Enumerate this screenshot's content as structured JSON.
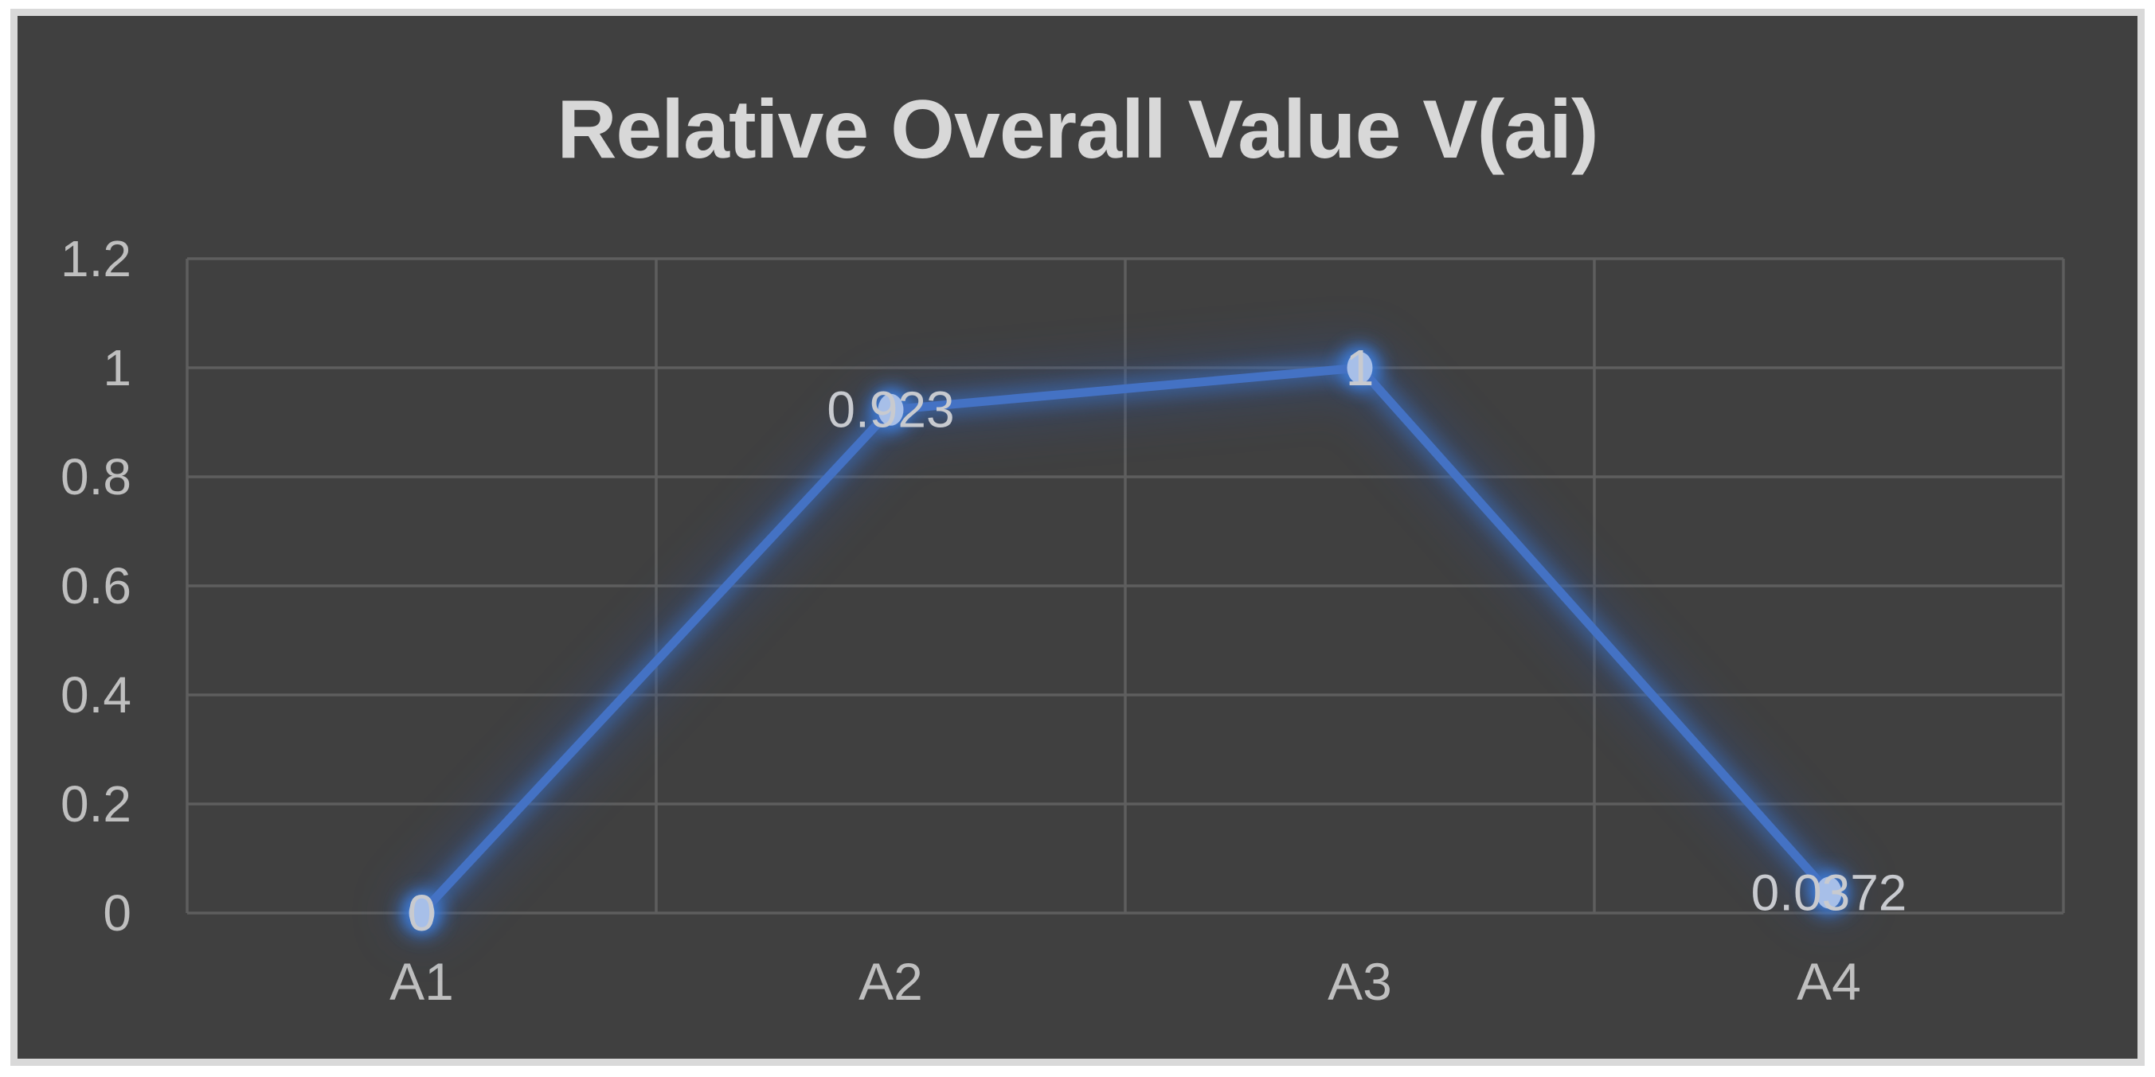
{
  "chart_data": {
    "type": "line",
    "title": "Relative Overall Value V(ai)",
    "categories": [
      "A1",
      "A2",
      "A3",
      "A4"
    ],
    "series": [
      {
        "name": "V(ai)",
        "values": [
          0,
          0.923,
          1,
          0.0372
        ],
        "data_labels": [
          "0",
          "0.923",
          "1",
          "0.0372"
        ],
        "data_label_position": "center"
      }
    ],
    "ylim": [
      0,
      1.2
    ],
    "y_tick_step": 0.2,
    "y_tick_labels": [
      "0",
      "0.2",
      "0.4",
      "0.6",
      "0.8",
      "1",
      "1.2"
    ],
    "grid": "major-horizontal-and-vertical",
    "legend": "none",
    "style": "dark background, blue glowing line with circular markers",
    "colors": {
      "page_background": "#FFFFFF",
      "frame_border": "#D9D9D9",
      "chart_background": "#404040",
      "gridline": "#5E5E5E",
      "title_text": "#D8D8D8",
      "axis_text": "#BFBFBF",
      "data_label_text": "#C8CACF",
      "line": "#4472C4",
      "marker": "#A7BFE8",
      "glow_bright": "#3E7AD6",
      "glow_dark": "#2F4E8F"
    }
  }
}
